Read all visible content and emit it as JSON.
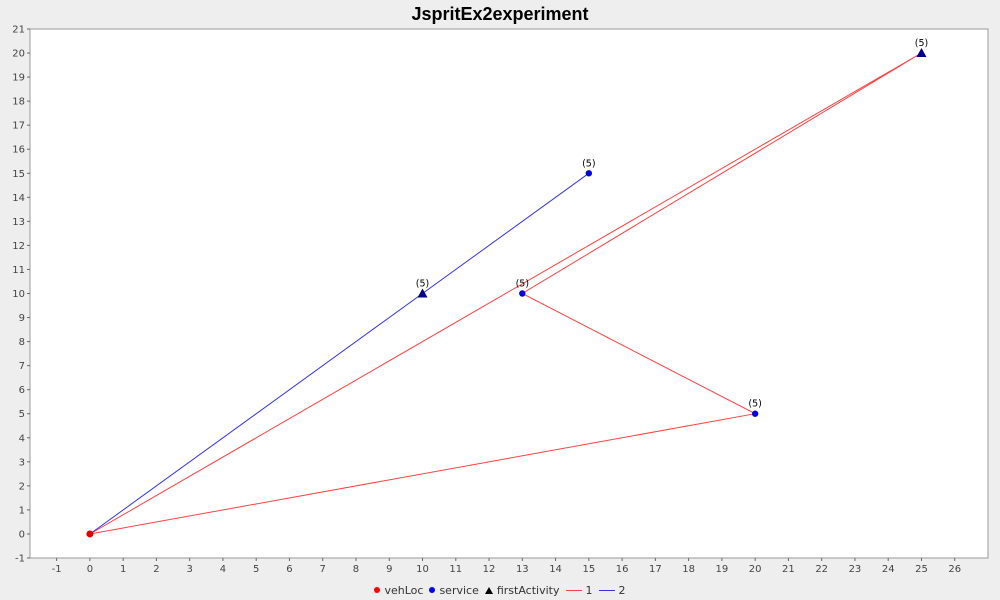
{
  "chart_data": {
    "type": "scatter",
    "title": "JspritEx2experiment",
    "xlabel": "",
    "ylabel": "",
    "xlim": [
      -1.8,
      27
    ],
    "ylim": [
      -1,
      21
    ],
    "xticks": [
      -1,
      0,
      1,
      2,
      3,
      4,
      5,
      6,
      7,
      8,
      9,
      10,
      11,
      12,
      13,
      14,
      15,
      16,
      17,
      18,
      19,
      20,
      21,
      22,
      23,
      24,
      25,
      26
    ],
    "yticks": [
      -1,
      0,
      1,
      2,
      3,
      4,
      5,
      6,
      7,
      8,
      9,
      10,
      11,
      12,
      13,
      14,
      15,
      16,
      17,
      18,
      19,
      20,
      21
    ],
    "grid": false,
    "legend_position": "bottom",
    "points": [
      {
        "series": "service",
        "x": 15,
        "y": 15,
        "label": "(5)"
      },
      {
        "series": "service",
        "x": 13,
        "y": 10,
        "label": "(5)"
      },
      {
        "series": "service",
        "x": 20,
        "y": 5,
        "label": "(5)"
      },
      {
        "series": "firstActivity",
        "x": 10,
        "y": 10,
        "label": "(5)"
      },
      {
        "series": "firstActivity",
        "x": 25,
        "y": 20,
        "label": "(5)"
      },
      {
        "series": "vehLoc",
        "x": 0,
        "y": 0,
        "label": ""
      }
    ],
    "routes": [
      {
        "name": "1",
        "color": "#ff4040",
        "path": [
          [
            0,
            0
          ],
          [
            25,
            20
          ],
          [
            13,
            10
          ],
          [
            20,
            5
          ],
          [
            0,
            0
          ]
        ]
      },
      {
        "name": "2",
        "color": "#3333ee",
        "path": [
          [
            0,
            0
          ],
          [
            10,
            10
          ],
          [
            15,
            15
          ]
        ]
      }
    ],
    "legend": [
      {
        "name": "vehLoc",
        "kind": "dot",
        "color": "#ff0000"
      },
      {
        "name": "service",
        "kind": "dot",
        "color": "#0000ff"
      },
      {
        "name": "firstActivity",
        "kind": "triangle",
        "color": "#000000"
      },
      {
        "name": "1",
        "kind": "line",
        "color": "#ff4040"
      },
      {
        "name": "2",
        "kind": "line",
        "color": "#3333ee"
      }
    ],
    "colors": {
      "service": "#0000dd",
      "firstActivity": "#000088",
      "vehLoc": "#dd0000"
    }
  }
}
